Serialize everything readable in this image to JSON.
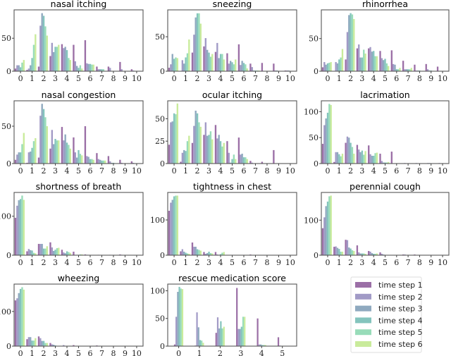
{
  "legend": {
    "placement": "bottom-right",
    "entries": [
      "time step 1",
      "time step 2",
      "time step 3",
      "time step 4",
      "time step 5",
      "time step 6"
    ],
    "colors": [
      "#9b6fa6",
      "#a19ac6",
      "#8fa9bf",
      "#84c4bd",
      "#98dcb9",
      "#c9eb9b"
    ]
  },
  "chart_data": [
    {
      "type": "bar",
      "title": "nasal itching",
      "categories": [
        "0",
        "1",
        "2",
        "3",
        "4",
        "5",
        "6",
        "7",
        "8",
        "9",
        "10"
      ],
      "ylim": [
        0,
        93
      ],
      "yticks": [
        "0",
        "50"
      ],
      "xlim": [
        -0.55,
        10.55
      ],
      "values": [
        [
          4,
          9,
          9,
          6,
          13,
          17
        ],
        [
          2,
          4,
          9,
          20,
          40,
          56
        ],
        [
          7,
          69,
          88,
          84,
          68,
          54
        ],
        [
          23,
          43,
          29,
          37,
          37,
          40
        ],
        [
          41,
          35,
          37,
          32,
          20,
          17
        ],
        [
          40,
          15,
          8,
          5,
          9,
          4
        ],
        [
          47,
          12,
          11,
          11,
          10,
          10
        ],
        [
          7,
          3,
          3,
          3,
          3,
          0
        ],
        [
          7,
          5,
          0,
          0,
          0,
          0
        ],
        [
          14,
          3,
          0,
          0,
          0,
          0
        ],
        [
          3,
          1,
          0,
          0,
          0,
          0
        ]
      ]
    },
    {
      "type": "bar",
      "title": "sneezing",
      "categories": [
        "0",
        "1",
        "2",
        "3",
        "4",
        "5",
        "6",
        "7",
        "8",
        "9",
        "10"
      ],
      "ylim": [
        0,
        89
      ],
      "yticks": [
        "0",
        "50"
      ],
      "xlim": [
        -0.55,
        10.55
      ],
      "values": [
        [
          5,
          10,
          25,
          18,
          20,
          19
        ],
        [
          0,
          16,
          11,
          20,
          26,
          46
        ],
        [
          27,
          53,
          78,
          84,
          84,
          69
        ],
        [
          36,
          48,
          31,
          27,
          21,
          25
        ],
        [
          28,
          41,
          19,
          25,
          25,
          17
        ],
        [
          26,
          11,
          15,
          13,
          10,
          17
        ],
        [
          39,
          9,
          15,
          12,
          10,
          4
        ],
        [
          11,
          6,
          1,
          1,
          1,
          1
        ],
        [
          12,
          0,
          0,
          0,
          0,
          0
        ],
        [
          11,
          1,
          1,
          0,
          0,
          0
        ],
        [
          1,
          1,
          1,
          0,
          0,
          0
        ]
      ]
    },
    {
      "type": "bar",
      "title": "rhinorrhea",
      "categories": [
        "0",
        "1",
        "2",
        "3",
        "4",
        "5",
        "6",
        "7",
        "8",
        "9",
        "10"
      ],
      "ylim": [
        0,
        94
      ],
      "yticks": [
        "0",
        "50"
      ],
      "xlim": [
        -0.55,
        10.55
      ],
      "values": [
        [
          6,
          14,
          10,
          12,
          13,
          14
        ],
        [
          0,
          14,
          12,
          18,
          21,
          34
        ],
        [
          18,
          60,
          86,
          89,
          87,
          80
        ],
        [
          35,
          41,
          21,
          21,
          33,
          27
        ],
        [
          35,
          37,
          30,
          31,
          23,
          23
        ],
        [
          31,
          20,
          17,
          19,
          12,
          8
        ],
        [
          32,
          11,
          10,
          3,
          3,
          5
        ],
        [
          16,
          3,
          3,
          3,
          3,
          5
        ],
        [
          10,
          1,
          1,
          1,
          0,
          0
        ],
        [
          11,
          3,
          1,
          1,
          0,
          0
        ],
        [
          7,
          0,
          0,
          0,
          0,
          0
        ]
      ]
    },
    {
      "type": "bar",
      "title": "nasal congestion",
      "categories": [
        "0",
        "1",
        "2",
        "3",
        "4",
        "5",
        "6",
        "7",
        "8",
        "9",
        "10"
      ],
      "ylim": [
        0,
        84
      ],
      "yticks": [
        "0",
        "50"
      ],
      "xlim": [
        -0.55,
        10.55
      ],
      "values": [
        [
          5,
          12,
          15,
          15,
          26,
          41
        ],
        [
          1,
          15,
          16,
          21,
          30,
          34
        ],
        [
          8,
          64,
          80,
          73,
          62,
          50
        ],
        [
          20,
          45,
          26,
          33,
          31,
          31
        ],
        [
          49,
          31,
          39,
          28,
          25,
          20
        ],
        [
          35,
          15,
          8,
          18,
          13,
          11
        ],
        [
          50,
          10,
          9,
          6,
          6,
          5
        ],
        [
          14,
          6,
          5,
          4,
          4,
          4
        ],
        [
          10,
          3,
          1,
          1,
          0,
          0
        ],
        [
          5,
          1,
          0,
          0,
          0,
          0
        ],
        [
          3,
          1,
          0,
          0,
          0,
          0
        ]
      ]
    },
    {
      "type": "bar",
      "title": "ocular itching",
      "categories": [
        "0",
        "1",
        "2",
        "3",
        "4",
        "5",
        "6",
        "7",
        "8",
        "9",
        "10"
      ],
      "ylim": [
        0,
        70
      ],
      "yticks": [
        "0",
        "25",
        "50"
      ],
      "xlim": [
        -0.55,
        10.55
      ],
      "values": [
        [
          21,
          46,
          47,
          56,
          55,
          67
        ],
        [
          2,
          12,
          15,
          14,
          25,
          31
        ],
        [
          23,
          42,
          59,
          56,
          46,
          41
        ],
        [
          32,
          46,
          31,
          32,
          36,
          27
        ],
        [
          43,
          28,
          32,
          25,
          19,
          23
        ],
        [
          25,
          12,
          1,
          5,
          10,
          5
        ],
        [
          29,
          10,
          11,
          7,
          7,
          5
        ],
        [
          3,
          1,
          0,
          0,
          0,
          0
        ],
        [
          2,
          0,
          0,
          0,
          0,
          0
        ],
        [
          15,
          0,
          0,
          0,
          0,
          0
        ],
        [
          0,
          0,
          0,
          0,
          0,
          0
        ]
      ]
    },
    {
      "type": "bar",
      "title": "lacrimation",
      "categories": [
        "0",
        "1",
        "2",
        "3",
        "4",
        "5",
        "6",
        "7",
        "8",
        "9",
        "10"
      ],
      "ylim": [
        0,
        121
      ],
      "yticks": [
        "0",
        "50",
        "100"
      ],
      "xlim": [
        -0.55,
        10.55
      ],
      "values": [
        [
          38,
          74,
          87,
          98,
          115,
          113
        ],
        [
          3,
          22,
          22,
          18,
          14,
          19
        ],
        [
          40,
          52,
          50,
          40,
          32,
          19
        ],
        [
          36,
          27,
          22,
          25,
          17,
          24
        ],
        [
          35,
          18,
          15,
          15,
          20,
          21
        ],
        [
          19,
          5,
          2,
          2,
          2,
          3
        ],
        [
          23,
          0,
          0,
          0,
          0,
          0
        ],
        [
          0,
          1,
          0,
          0,
          0,
          0
        ],
        [
          0,
          1,
          0,
          0,
          0,
          0
        ],
        [
          0,
          1,
          1,
          0,
          0,
          0
        ],
        [
          0,
          1,
          0,
          0,
          0,
          0
        ]
      ]
    },
    {
      "type": "bar",
      "title": "shortness of breath",
      "categories": [
        "0",
        "1",
        "2",
        "3",
        "4",
        "5",
        "6",
        "7",
        "8",
        "9",
        "10"
      ],
      "ylim": [
        0,
        161
      ],
      "yticks": [
        "0",
        "100"
      ],
      "xlim": [
        -0.55,
        10.55
      ],
      "values": [
        [
          96,
          127,
          141,
          144,
          153,
          142
        ],
        [
          10,
          16,
          13,
          12,
          6,
          5
        ],
        [
          29,
          29,
          29,
          17,
          17,
          23
        ],
        [
          33,
          20,
          11,
          14,
          18,
          19
        ],
        [
          14,
          7,
          5,
          10,
          8,
          6
        ],
        [
          9,
          1,
          1,
          1,
          2,
          2
        ],
        [
          2,
          1,
          0,
          0,
          0,
          0
        ],
        [
          0,
          1,
          0,
          0,
          0,
          0
        ],
        [
          0,
          1,
          0,
          0,
          0,
          0
        ],
        [
          2,
          1,
          0,
          0,
          0,
          0
        ],
        [
          0,
          0,
          0,
          0,
          0,
          0
        ]
      ]
    },
    {
      "type": "bar",
      "title": "tightness in chest",
      "categories": [
        "0",
        "1",
        "2",
        "3",
        "4",
        "5",
        "6",
        "7",
        "8",
        "9",
        "10"
      ],
      "ylim": [
        0,
        178
      ],
      "yticks": [
        "0",
        "100"
      ],
      "xlim": [
        -0.55,
        10.55
      ],
      "values": [
        [
          126,
          149,
          157,
          167,
          169,
          169
        ],
        [
          11,
          17,
          10,
          7,
          5,
          4
        ],
        [
          36,
          24,
          24,
          17,
          15,
          13
        ],
        [
          9,
          4,
          6,
          10,
          6,
          5
        ],
        [
          9,
          2,
          1,
          3,
          7,
          9
        ],
        [
          1,
          1,
          0,
          0,
          0,
          0
        ],
        [
          0,
          1,
          0,
          0,
          0,
          0
        ],
        [
          2,
          1,
          0,
          0,
          0,
          0
        ],
        [
          1,
          1,
          0,
          0,
          0,
          0
        ],
        [
          1,
          1,
          0,
          0,
          0,
          0
        ],
        [
          0,
          1,
          0,
          0,
          0,
          0
        ]
      ]
    },
    {
      "type": "bar",
      "title": "perennial cough",
      "categories": [
        "0",
        "1",
        "2",
        "3",
        "4",
        "5",
        "6",
        "7",
        "8",
        "9",
        "10"
      ],
      "ylim": [
        0,
        179
      ],
      "yticks": [
        "0",
        "100"
      ],
      "xlim": [
        -0.55,
        10.55
      ],
      "values": [
        [
          77,
          108,
          140,
          153,
          168,
          170
        ],
        [
          24,
          25,
          21,
          18,
          10,
          10
        ],
        [
          44,
          43,
          22,
          19,
          14,
          12
        ],
        [
          28,
          8,
          5,
          5,
          5,
          4
        ],
        [
          12,
          10,
          6,
          4,
          4,
          5
        ],
        [
          8,
          4,
          2,
          1,
          1,
          0
        ],
        [
          1,
          1,
          0,
          0,
          0,
          0
        ],
        [
          2,
          2,
          1,
          0,
          0,
          0
        ],
        [
          2,
          0,
          0,
          0,
          0,
          0
        ],
        [
          0,
          1,
          0,
          0,
          0,
          0
        ],
        [
          0,
          0,
          0,
          0,
          0,
          0
        ]
      ]
    },
    {
      "type": "bar",
      "title": "wheezing",
      "categories": [
        "0",
        "1",
        "2",
        "3",
        "4",
        "5",
        "6",
        "7",
        "8",
        "9",
        "10"
      ],
      "ylim": [
        0,
        179
      ],
      "yticks": [
        "0",
        "100"
      ],
      "xlim": [
        -0.55,
        10.55
      ],
      "values": [
        [
          132,
          138,
          153,
          165,
          170,
          163
        ],
        [
          20,
          26,
          26,
          16,
          16,
          23
        ],
        [
          28,
          23,
          15,
          15,
          9,
          9
        ],
        [
          9,
          5,
          4,
          2,
          1,
          0
        ],
        [
          1,
          3,
          0,
          0,
          0,
          0
        ],
        [
          3,
          0,
          0,
          0,
          0,
          0
        ],
        [
          0,
          1,
          0,
          0,
          0,
          0
        ],
        [
          2,
          1,
          0,
          0,
          0,
          0
        ],
        [
          0,
          0,
          0,
          0,
          0,
          0
        ],
        [
          0,
          0,
          0,
          0,
          0,
          0
        ],
        [
          0,
          0,
          0,
          0,
          0,
          0
        ]
      ]
    },
    {
      "type": "bar",
      "title": "rescue medication score",
      "categories": [
        "0",
        "1",
        "2",
        "3",
        "4",
        "5"
      ],
      "ylim": [
        0,
        112
      ],
      "yticks": [
        "0",
        "50",
        "100"
      ],
      "xlim": [
        -0.53,
        5.69
      ],
      "values": [
        [
          3,
          53,
          98,
          107,
          104,
          103
        ],
        [
          1,
          61,
          34,
          11,
          10,
          6
        ],
        [
          24,
          52,
          32,
          45,
          32,
          35
        ],
        [
          105,
          31,
          31,
          35,
          53,
          53
        ],
        [
          50,
          3,
          3,
          2,
          2,
          2
        ],
        [
          16,
          1,
          0,
          0,
          0,
          0
        ]
      ]
    }
  ]
}
